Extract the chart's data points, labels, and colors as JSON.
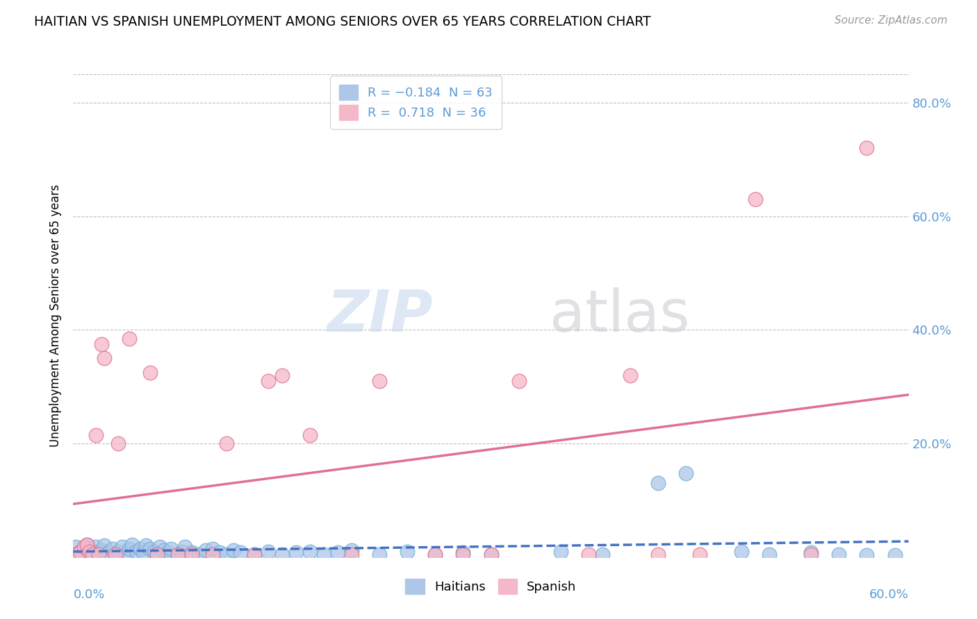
{
  "title": "HAITIAN VS SPANISH UNEMPLOYMENT AMONG SENIORS OVER 65 YEARS CORRELATION CHART",
  "source": "Source: ZipAtlas.com",
  "ylabel": "Unemployment Among Seniors over 65 years",
  "xlim": [
    0.0,
    0.6
  ],
  "ylim": [
    0.0,
    0.85
  ],
  "yticks": [
    0.0,
    0.2,
    0.4,
    0.6,
    0.8
  ],
  "ytick_labels": [
    "",
    "20.0%",
    "40.0%",
    "60.0%",
    "80.0%"
  ],
  "haitian_color": "#6baed6",
  "haitian_fill": "#aec6e8",
  "spanish_color": "#e07090",
  "spanish_fill": "#f4b8c8",
  "haitian_R": -0.184,
  "haitian_N": 63,
  "spanish_R": 0.718,
  "spanish_N": 36,
  "haitian_points": [
    [
      0.002,
      0.018
    ],
    [
      0.005,
      0.01
    ],
    [
      0.007,
      0.005
    ],
    [
      0.01,
      0.022
    ],
    [
      0.012,
      0.015
    ],
    [
      0.014,
      0.008
    ],
    [
      0.016,
      0.018
    ],
    [
      0.018,
      0.005
    ],
    [
      0.02,
      0.012
    ],
    [
      0.022,
      0.02
    ],
    [
      0.025,
      0.008
    ],
    [
      0.028,
      0.015
    ],
    [
      0.03,
      0.005
    ],
    [
      0.032,
      0.01
    ],
    [
      0.035,
      0.018
    ],
    [
      0.038,
      0.005
    ],
    [
      0.04,
      0.015
    ],
    [
      0.042,
      0.022
    ],
    [
      0.045,
      0.01
    ],
    [
      0.048,
      0.015
    ],
    [
      0.05,
      0.008
    ],
    [
      0.052,
      0.02
    ],
    [
      0.055,
      0.015
    ],
    [
      0.058,
      0.01
    ],
    [
      0.06,
      0.005
    ],
    [
      0.062,
      0.018
    ],
    [
      0.065,
      0.012
    ],
    [
      0.068,
      0.008
    ],
    [
      0.07,
      0.015
    ],
    [
      0.075,
      0.005
    ],
    [
      0.078,
      0.01
    ],
    [
      0.08,
      0.018
    ],
    [
      0.085,
      0.008
    ],
    [
      0.09,
      0.005
    ],
    [
      0.095,
      0.012
    ],
    [
      0.1,
      0.015
    ],
    [
      0.105,
      0.008
    ],
    [
      0.11,
      0.005
    ],
    [
      0.115,
      0.012
    ],
    [
      0.12,
      0.008
    ],
    [
      0.13,
      0.005
    ],
    [
      0.14,
      0.01
    ],
    [
      0.15,
      0.005
    ],
    [
      0.16,
      0.008
    ],
    [
      0.17,
      0.01
    ],
    [
      0.18,
      0.005
    ],
    [
      0.19,
      0.008
    ],
    [
      0.2,
      0.012
    ],
    [
      0.22,
      0.005
    ],
    [
      0.24,
      0.01
    ],
    [
      0.26,
      0.005
    ],
    [
      0.28,
      0.008
    ],
    [
      0.3,
      0.005
    ],
    [
      0.35,
      0.01
    ],
    [
      0.38,
      0.005
    ],
    [
      0.42,
      0.13
    ],
    [
      0.44,
      0.148
    ],
    [
      0.48,
      0.01
    ],
    [
      0.5,
      0.005
    ],
    [
      0.53,
      0.008
    ],
    [
      0.55,
      0.005
    ],
    [
      0.57,
      0.003
    ],
    [
      0.59,
      0.003
    ]
  ],
  "spanish_points": [
    [
      0.002,
      0.005
    ],
    [
      0.005,
      0.008
    ],
    [
      0.008,
      0.018
    ],
    [
      0.01,
      0.022
    ],
    [
      0.012,
      0.01
    ],
    [
      0.014,
      0.005
    ],
    [
      0.016,
      0.215
    ],
    [
      0.018,
      0.005
    ],
    [
      0.02,
      0.375
    ],
    [
      0.022,
      0.35
    ],
    [
      0.03,
      0.005
    ],
    [
      0.032,
      0.2
    ],
    [
      0.04,
      0.385
    ],
    [
      0.055,
      0.325
    ],
    [
      0.06,
      0.005
    ],
    [
      0.075,
      0.005
    ],
    [
      0.085,
      0.005
    ],
    [
      0.1,
      0.005
    ],
    [
      0.11,
      0.2
    ],
    [
      0.13,
      0.005
    ],
    [
      0.14,
      0.31
    ],
    [
      0.15,
      0.32
    ],
    [
      0.17,
      0.215
    ],
    [
      0.2,
      0.005
    ],
    [
      0.22,
      0.31
    ],
    [
      0.26,
      0.005
    ],
    [
      0.28,
      0.005
    ],
    [
      0.3,
      0.005
    ],
    [
      0.32,
      0.31
    ],
    [
      0.37,
      0.005
    ],
    [
      0.4,
      0.32
    ],
    [
      0.42,
      0.005
    ],
    [
      0.45,
      0.005
    ],
    [
      0.49,
      0.63
    ],
    [
      0.53,
      0.005
    ],
    [
      0.57,
      0.72
    ]
  ],
  "haitian_line_color": "#4472c4",
  "spanish_line_color": "#e07090"
}
